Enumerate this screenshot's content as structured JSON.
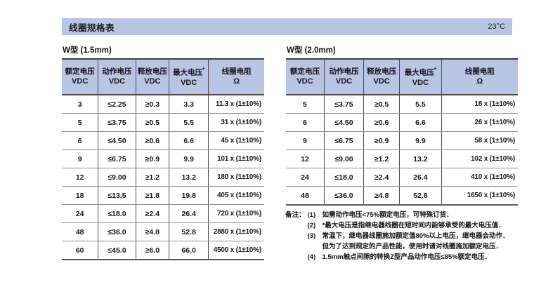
{
  "header": {
    "title": "线圈规格表",
    "temperature": "23°C"
  },
  "colors": {
    "accent_blue": "#b8c6e3",
    "border_dark": "#4a4a4a",
    "border_light": "#8c8c8c",
    "text": "#1a1a1a"
  },
  "tables": [
    {
      "title": "W型 (1.5mm)",
      "columns": [
        {
          "line1": "额定电压",
          "line2": "VDC"
        },
        {
          "line1": "动作电压",
          "line2": "VDC"
        },
        {
          "line1": "释放电压",
          "line2": "VDC"
        },
        {
          "line1": "最大电压",
          "sup": "*",
          "line2": "VDC"
        },
        {
          "line1": "线圈电阻",
          "line2": "Ω"
        }
      ],
      "rows": [
        [
          "3",
          "≤2.25",
          "≥0.3",
          "3.3",
          "11.3 x (1±10%)"
        ],
        [
          "5",
          "≤3.75",
          "≥0.5",
          "5.5",
          "31 x (1±10%)"
        ],
        [
          "6",
          "≤4.50",
          "≥0.6",
          "6.6",
          "45 x (1±10%)"
        ],
        [
          "9",
          "≤6.75",
          "≥0.9",
          "9.9",
          "101 x (1±10%)"
        ],
        [
          "12",
          "≤9.00",
          "≥1.2",
          "13.2",
          "180 x (1±10%)"
        ],
        [
          "18",
          "≤13.5",
          "≥1.8",
          "19.8",
          "405 x (1±10%)"
        ],
        [
          "24",
          "≤18.0",
          "≥2.4",
          "26.4",
          "720 x (1±10%)"
        ],
        [
          "48",
          "≤36.0",
          "≥4.8",
          "52.8",
          "2880 x (1±10%)"
        ],
        [
          "60",
          "≤45.0",
          "≥6.0",
          "66.0",
          "4500 x (1±10%)"
        ]
      ]
    },
    {
      "title": "W型 (2.0mm)",
      "columns": [
        {
          "line1": "额定电压",
          "line2": "VDC"
        },
        {
          "line1": "动作电压",
          "line2": "VDC"
        },
        {
          "line1": "释放电压",
          "line2": "VDC"
        },
        {
          "line1": "最大电压",
          "sup": "*",
          "line2": "VDC"
        },
        {
          "line1": "线圈电阻",
          "line2": "Ω"
        }
      ],
      "rows": [
        [
          "5",
          "≤3.75",
          "≥0.5",
          "5.5",
          "18 x (1±10%)"
        ],
        [
          "6",
          "≤4.50",
          "≥0.6",
          "6.6",
          "26 x (1±10%)"
        ],
        [
          "9",
          "≤6.75",
          "≥0.9",
          "9.9",
          "58 x (1±10%)"
        ],
        [
          "12",
          "≤9.00",
          "≥1.2",
          "13.2",
          "102 x (1±10%)"
        ],
        [
          "24",
          "≤18.0",
          "≥2.4",
          "26.4",
          "410 x (1±10%)"
        ],
        [
          "48",
          "≤36.0",
          "≥4.8",
          "52.8",
          "1650 x (1±10%)"
        ]
      ]
    }
  ],
  "notes": {
    "label": "备注：",
    "items": [
      {
        "num": "(1)",
        "lines": [
          "如需动作电压<75%额定电压，可特殊订货．"
        ]
      },
      {
        "num": "(2)",
        "lines": [
          "*最大电压是指继电器线圈在短时间内能够承受的最大电压值．"
        ]
      },
      {
        "num": "(3)",
        "lines": [
          "常温下，继电器线圈施加额定值80%以上电压，继电器会动作．",
          "但为了达到规定的产品性能，使用时请对线圈施加额定电压．"
        ]
      },
      {
        "num": "(4)",
        "lines": [
          "1.5mm触点间隙的转换Z型产品动作电压≤85%额定电压．"
        ]
      }
    ]
  }
}
